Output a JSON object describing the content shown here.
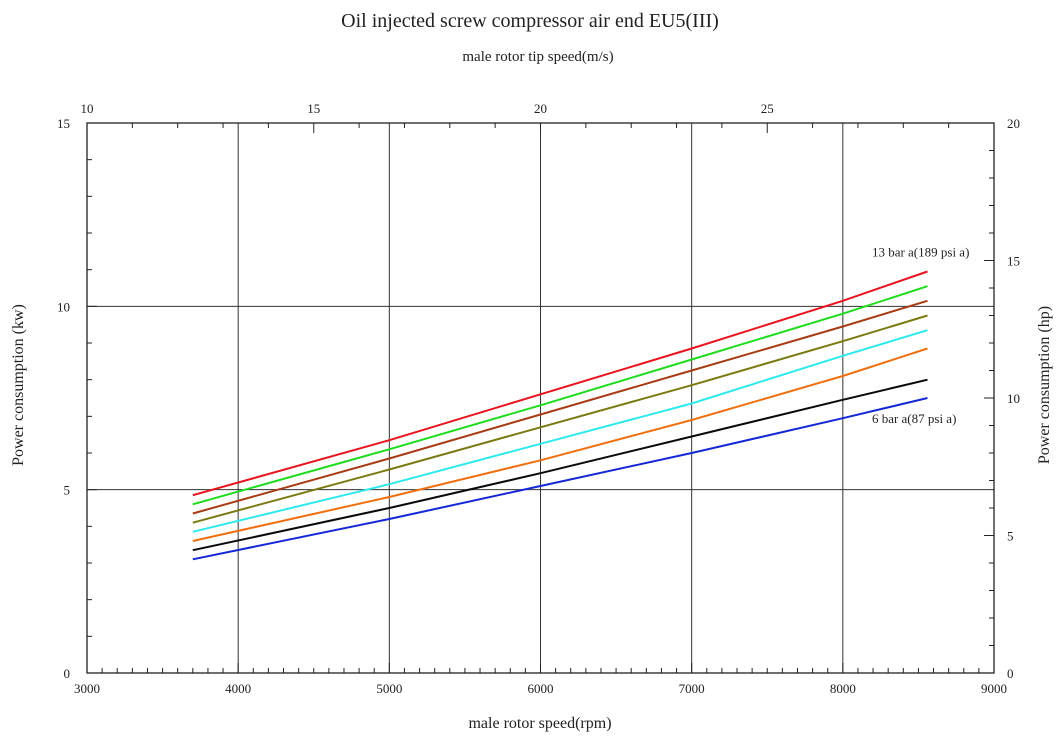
{
  "chart_data": {
    "type": "line",
    "title": "Oil injected screw compressor air end  EU5(III)",
    "subtitle": "male rotor tip speed(m/s)",
    "xlabel": "male rotor speed(rpm)",
    "ylabel": "Power consumption (kw)",
    "y2label": "Power consumption (hp)",
    "xlim": [
      3000,
      9000
    ],
    "ylim": [
      0,
      15
    ],
    "y2lim": [
      0,
      20
    ],
    "x2lim": [
      10,
      30
    ],
    "x_ticks": [
      "3000",
      "4000",
      "5000",
      "6000",
      "7000",
      "8000",
      "9000"
    ],
    "y_ticks": [
      "0",
      "5",
      "10",
      "15"
    ],
    "y2_ticks": [
      "0",
      "5",
      "10",
      "15",
      "20"
    ],
    "x2_ticks": [
      "10",
      "15",
      "20",
      "25"
    ],
    "grid": true,
    "series": [
      {
        "color": "#e8141e",
        "x": [
          3700,
          5000,
          6000,
          7000,
          8000,
          8560
        ],
        "y": [
          4.85,
          6.35,
          7.6,
          8.85,
          10.15,
          10.95
        ]
      },
      {
        "color": "#1fdc1f",
        "x": [
          3700,
          5000,
          6000,
          7000,
          8000,
          8560
        ],
        "y": [
          4.6,
          6.1,
          7.3,
          8.55,
          9.8,
          10.55
        ]
      },
      {
        "color": "#a83c14",
        "x": [
          3700,
          5000,
          6000,
          7000,
          8000,
          8560
        ],
        "y": [
          4.35,
          5.85,
          7.05,
          8.25,
          9.45,
          10.15
        ]
      },
      {
        "color": "#7b7a12",
        "x": [
          3700,
          5000,
          6000,
          7000,
          8000,
          8560
        ],
        "y": [
          4.1,
          5.55,
          6.7,
          7.85,
          9.05,
          9.75
        ]
      },
      {
        "color": "#2ee9ee",
        "x": [
          3700,
          5000,
          6000,
          7000,
          8000,
          8560
        ],
        "y": [
          3.85,
          5.15,
          6.25,
          7.35,
          8.65,
          9.35
        ]
      },
      {
        "color": "#f07010",
        "x": [
          3700,
          5000,
          6000,
          7000,
          8000,
          8560
        ],
        "y": [
          3.6,
          4.8,
          5.8,
          6.9,
          8.1,
          8.85
        ]
      },
      {
        "color": "#0a0a0a",
        "x": [
          3700,
          5000,
          6000,
          7000,
          8000,
          8560
        ],
        "y": [
          3.35,
          4.5,
          5.45,
          6.45,
          7.45,
          8.0
        ]
      },
      {
        "color": "#1428d8",
        "x": [
          3700,
          5000,
          6000,
          7000,
          8000,
          8560
        ],
        "y": [
          3.1,
          4.2,
          5.1,
          6.0,
          6.95,
          7.5
        ]
      }
    ],
    "annotations": [
      {
        "text": "13 bar a(189 psi a)",
        "x": 8100,
        "y": 11.5
      },
      {
        "text": "6 bar a(87 psi a)",
        "x": 8100,
        "y": 6.95
      }
    ]
  }
}
